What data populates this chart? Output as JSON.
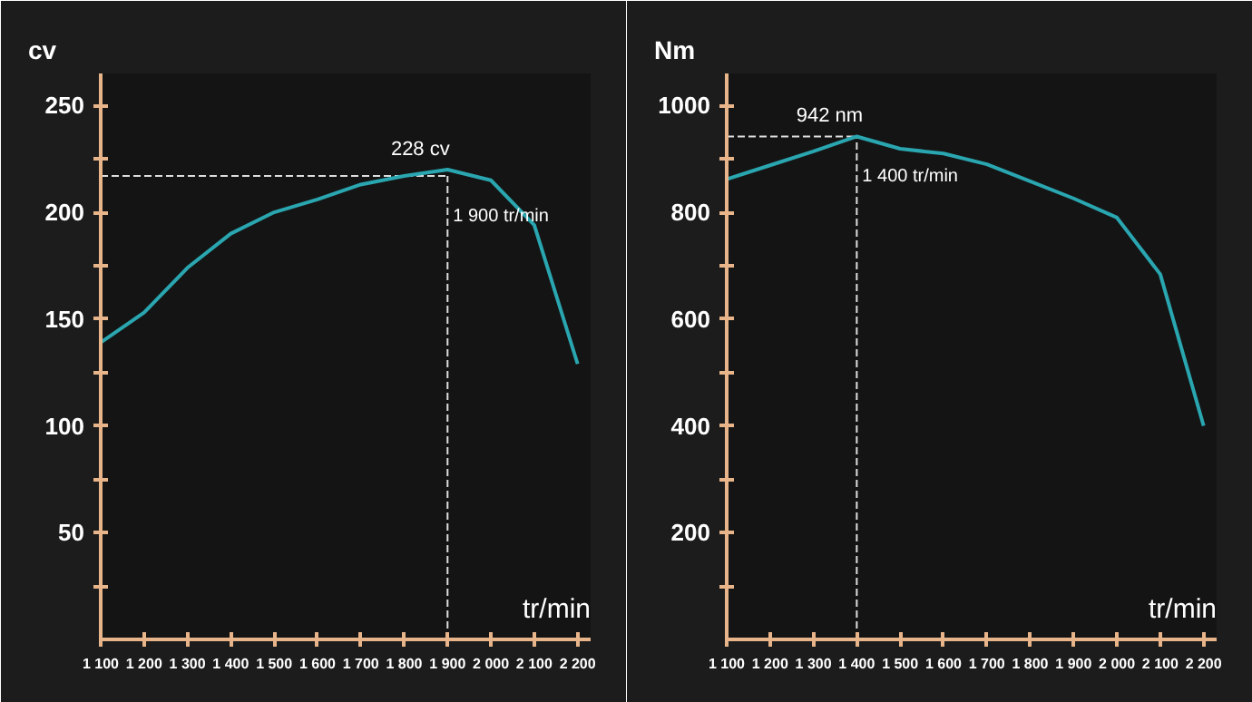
{
  "chart_data": [
    {
      "type": "line",
      "ylabel": "cv",
      "xlabel": "tr/min",
      "x": [
        1100,
        1200,
        1300,
        1400,
        1500,
        1600,
        1700,
        1800,
        1900,
        2000,
        2100,
        2200
      ],
      "series": [
        {
          "color": "#2aa6b0",
          "values": [
            139,
            153,
            174,
            190,
            200,
            206,
            213,
            217,
            220,
            215,
            194,
            129
          ]
        }
      ],
      "xlim": [
        1100,
        2230
      ],
      "ylim": [
        0,
        265
      ],
      "xticks": [
        {
          "value": 1100,
          "label": "1 100"
        },
        {
          "value": 1200,
          "label": "1 200"
        },
        {
          "value": 1300,
          "label": "1 300"
        },
        {
          "value": 1400,
          "label": "1 400"
        },
        {
          "value": 1500,
          "label": "1 500"
        },
        {
          "value": 1600,
          "label": "1 600"
        },
        {
          "value": 1700,
          "label": "1 700"
        },
        {
          "value": 1800,
          "label": "1 800"
        },
        {
          "value": 1900,
          "label": "1 900"
        },
        {
          "value": 2000,
          "label": "2 000"
        },
        {
          "value": 2100,
          "label": "2 100"
        },
        {
          "value": 2200,
          "label": "2 200"
        }
      ],
      "yticks": [
        {
          "value": 25,
          "label": null
        },
        50,
        {
          "value": 75,
          "label": null
        },
        100,
        {
          "value": 125,
          "label": null
        },
        150,
        {
          "value": 175,
          "label": null
        },
        200,
        {
          "value": 225,
          "label": null
        },
        250
      ],
      "ref_lines": [
        {
          "axis": "y",
          "value": 217,
          "color": "#dddddd",
          "line_style": "dashed"
        },
        {
          "axis": "x",
          "value": 1900,
          "label": "1 900 tr/min",
          "color": "#dddddd",
          "line_style": "dashed"
        }
      ],
      "annotations": [
        {
          "text": "228 cv",
          "x": 1900,
          "y": 220
        }
      ],
      "grid": false,
      "marker": "none",
      "line_style": "solid"
    },
    {
      "type": "line",
      "ylabel": "Nm",
      "xlabel": "tr/min",
      "x": [
        1100,
        1200,
        1300,
        1400,
        1500,
        1600,
        1700,
        1800,
        1900,
        2000,
        2100,
        2200
      ],
      "series": [
        {
          "color": "#2aa6b0",
          "values": [
            862,
            888,
            914,
            942,
            919,
            910,
            890,
            858,
            826,
            790,
            684,
            400
          ]
        }
      ],
      "xlim": [
        1100,
        2230
      ],
      "ylim": [
        0,
        1060
      ],
      "xticks": [
        {
          "value": 1100,
          "label": "1 100"
        },
        {
          "value": 1200,
          "label": "1 200"
        },
        {
          "value": 1300,
          "label": "1 300"
        },
        {
          "value": 1400,
          "label": "1 400"
        },
        {
          "value": 1500,
          "label": "1 500"
        },
        {
          "value": 1600,
          "label": "1 600"
        },
        {
          "value": 1700,
          "label": "1 700"
        },
        {
          "value": 1800,
          "label": "1 800"
        },
        {
          "value": 1900,
          "label": "1 900"
        },
        {
          "value": 2000,
          "label": "2 000"
        },
        {
          "value": 2100,
          "label": "2 100"
        },
        {
          "value": 2200,
          "label": "2 200"
        }
      ],
      "yticks": [
        {
          "value": 100,
          "label": null
        },
        200,
        {
          "value": 300,
          "label": null
        },
        400,
        {
          "value": 500,
          "label": null
        },
        600,
        {
          "value": 700,
          "label": null
        },
        800,
        {
          "value": 900,
          "label": null
        },
        1000
      ],
      "ref_lines": [
        {
          "axis": "y",
          "value": 942,
          "color": "#dddddd",
          "line_style": "dashed"
        },
        {
          "axis": "x",
          "value": 1400,
          "label": "1 400 tr/min",
          "color": "#dddddd",
          "line_style": "dashed"
        }
      ],
      "annotations": [
        {
          "text": "942 nm",
          "x": 1400,
          "y": 942
        }
      ],
      "grid": false,
      "marker": "none",
      "line_style": "solid"
    }
  ]
}
